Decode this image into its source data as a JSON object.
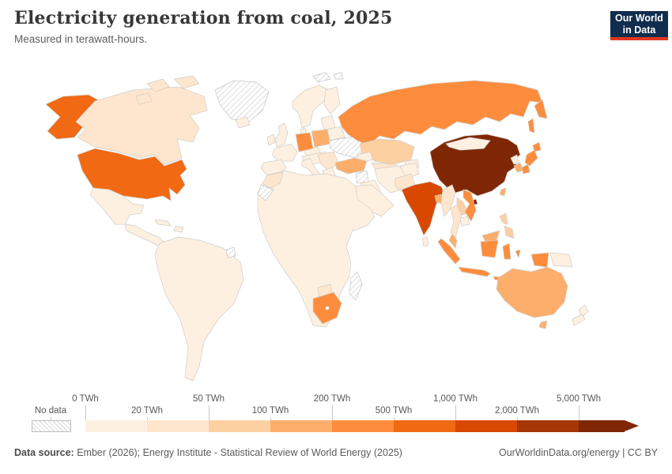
{
  "header": {
    "title": "Electricity generation from coal, 2025",
    "subtitle": "Measured in terawatt-hours."
  },
  "logo": {
    "line1": "Our World",
    "line2": "in Data",
    "bg_color": "#102d4e",
    "accent_color": "#e2351f"
  },
  "legend": {
    "no_data_label": "No data",
    "ticks": [
      {
        "label": "0 TWh",
        "row": "top"
      },
      {
        "label": "20 TWh",
        "row": "bottom"
      },
      {
        "label": "50 TWh",
        "row": "top"
      },
      {
        "label": "100 TWh",
        "row": "bottom"
      },
      {
        "label": "200 TWh",
        "row": "top"
      },
      {
        "label": "500 TWh",
        "row": "bottom"
      },
      {
        "label": "1,000 TWh",
        "row": "top"
      },
      {
        "label": "2,000 TWh",
        "row": "bottom"
      },
      {
        "label": "5,000 TWh",
        "row": "top"
      }
    ],
    "bin_colors": [
      "#fdf0e0",
      "#fee6ce",
      "#fdd0a2",
      "#fdae6b",
      "#fd8d3c",
      "#f16913",
      "#d94801",
      "#a63603",
      "#7f2704"
    ]
  },
  "chart_data": {
    "type": "heatmap",
    "subtype": "choropleth_world_map",
    "title": "Electricity generation from coal, 2025",
    "unit": "TWh",
    "bin_thresholds_twh": [
      0,
      20,
      50,
      100,
      200,
      500,
      1000,
      2000,
      5000
    ],
    "bin_colors": [
      "#fdf0e0",
      "#fee6ce",
      "#fdd0a2",
      "#fdae6b",
      "#fd8d3c",
      "#f16913",
      "#d94801",
      "#a63603",
      "#7f2704"
    ],
    "legend_position": "bottom",
    "no_data_countries": [
      "Greenland",
      "Ukraine",
      "Syria",
      "Western Sahara",
      "Madagascar",
      "French Guiana",
      "Svalbard"
    ],
    "countries_by_bin": {
      "5,000+ TWh": [
        "China"
      ],
      "1,000-2,000 TWh": [
        "India"
      ],
      "500-1,000 TWh": [
        "United States"
      ],
      "200-500 TWh": [
        "Russia",
        "Japan",
        "Indonesia",
        "South Africa",
        "Vietnam",
        "Germany"
      ],
      "100-200 TWh": [
        "Australia",
        "South Korea",
        "Turkey",
        "Poland",
        "Taiwan",
        "Malaysia",
        "Bangladesh"
      ],
      "50-100 TWh": [
        "Kazakhstan",
        "Philippines",
        "Laos",
        "Serbia"
      ],
      "20-50 TWh": [
        "Canada",
        "Morocco",
        "Botswana",
        "Pakistan",
        "Myanmar",
        "Thailand",
        "Uzbekistan",
        "Czechia"
      ],
      "0-20 TWh": [
        "Mexico",
        "Brazil",
        "Argentina",
        "France",
        "Spain",
        "United Kingdom",
        "Scandinavia",
        "Saudi Arabia",
        "Iran",
        "Egypt",
        "Nigeria",
        "Mongolia",
        "New Zealand",
        "Papua New Guinea",
        "most of Latin America and Africa"
      ]
    }
  },
  "map": {
    "default_fill": "#fdf0e0",
    "fills": {
      "usa": "#f16913",
      "alaska": "#f16913",
      "canada": "#fee6ce",
      "canada_arctic": "#fee6ce",
      "greenland": "nodata",
      "svalbard": "nodata",
      "frenchguiana": "nodata",
      "germany": "#fd8d3c",
      "poland": "#fdae6b",
      "balkans": "#fee6ce",
      "ukraine": "nodata",
      "russia": "#fd8d3c",
      "kazakhstan": "#fdd0a2",
      "centralasia": "#fee6ce",
      "turkey": "#fdae6b",
      "syria": "nodata",
      "morocco": "#fee6ce",
      "wsahara": "nodata",
      "southafrica": "#fd8d3c",
      "botswana": "#fee6ce",
      "madagascar": "nodata",
      "pakistan": "#fee6ce",
      "india": "#d94801",
      "bangladesh": "#fdae6b",
      "myanmar": "#fee6ce",
      "thailand": "#fee6ce",
      "laos": "#fdd0a2",
      "vietnam": "#fd8d3c",
      "malaysia": "#fdae6b",
      "indonesia": "#fd8d3c",
      "philippines": "#fdd0a2",
      "china": "#7f2704",
      "taiwan": "#fdae6b",
      "skorea": "#fdae6b",
      "japan": "#fd8d3c",
      "australia": "#fdae6b",
      "tasmania": "#fdae6b"
    }
  },
  "footer": {
    "source_bold": "Data source:",
    "source_rest": " Ember (2026); Energy Institute - Statistical Review of World Energy (2025)",
    "site": "OurWorldinData.org/energy",
    "separator": " | ",
    "license": "CC BY"
  }
}
